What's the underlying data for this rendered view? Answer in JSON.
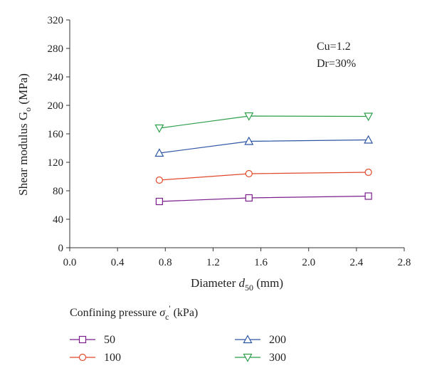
{
  "chart_data": {
    "type": "line",
    "xlabel": {
      "prefix": "Diameter ",
      "var": "d",
      "sub": "50",
      "suffix": " (mm)"
    },
    "ylabel": {
      "prefix": "Shear modulus G",
      "sub": "o",
      "suffix": " (MPa)"
    },
    "xlim": [
      0.0,
      2.8
    ],
    "ylim": [
      0,
      320
    ],
    "xticks": [
      "0.0",
      "0.4",
      "0.8",
      "1.2",
      "1.6",
      "2.0",
      "2.4",
      "2.8"
    ],
    "yticks": [
      "0",
      "40",
      "80",
      "120",
      "160",
      "200",
      "240",
      "280",
      "320"
    ],
    "x": [
      0.75,
      1.5,
      2.5
    ],
    "series": [
      {
        "name": "50",
        "values": [
          65,
          70,
          72.5
        ],
        "color": "#7a1e8c",
        "marker": "square"
      },
      {
        "name": "100",
        "values": [
          95,
          104,
          106
        ],
        "color": "#e0492a",
        "marker": "circle"
      },
      {
        "name": "200",
        "values": [
          133,
          149.5,
          151.5
        ],
        "color": "#2f55a4",
        "marker": "triangle-up"
      },
      {
        "name": "300",
        "values": [
          168,
          185,
          184.5
        ],
        "color": "#2e9e4a",
        "marker": "triangle-down"
      }
    ],
    "annotations": [
      "Cu=1.2",
      "Dr=30%"
    ],
    "legend": {
      "title": {
        "prefix": "Confining pressure ",
        "var": "σ",
        "sub": "c",
        "sup": "'",
        "suffix": " (kPa)"
      },
      "placement": "bottom",
      "entries": [
        "50",
        "100",
        "200",
        "300"
      ]
    },
    "grid": false
  }
}
